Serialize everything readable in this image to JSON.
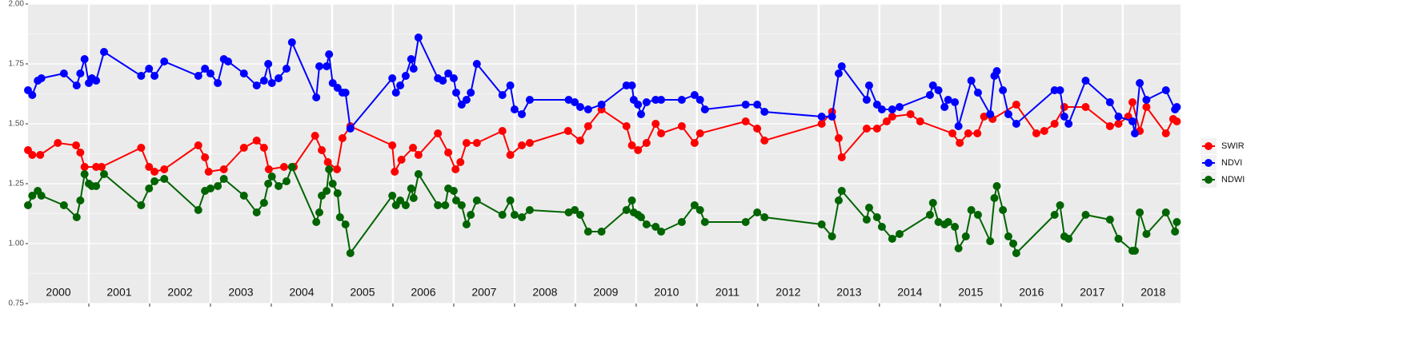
{
  "chart_data": {
    "type": "line",
    "xlim": [
      2000,
      2018.95
    ],
    "xticks": [
      2001,
      2002,
      2003,
      2004,
      2005,
      2006,
      2007,
      2008,
      2009,
      2010,
      2011,
      2012,
      2013,
      2014,
      2015,
      2016,
      2017,
      2018
    ],
    "ylim": [
      0.75,
      2.0
    ],
    "yticks": [
      {
        "value": 0.75,
        "label": "0.75"
      },
      {
        "value": 1.0,
        "label": "1.00"
      },
      {
        "value": 1.25,
        "label": "1.25"
      },
      {
        "value": 1.5,
        "label": "1.50"
      },
      {
        "value": 1.75,
        "label": "1.75"
      },
      {
        "value": 2.0,
        "label": "2.00"
      }
    ],
    "grid": true,
    "legend": "right",
    "year_labels": [
      {
        "x": 2000.5,
        "text": "2000"
      },
      {
        "x": 2001.5,
        "text": "2001"
      },
      {
        "x": 2002.5,
        "text": "2002"
      },
      {
        "x": 2003.5,
        "text": "2003"
      },
      {
        "x": 2004.5,
        "text": "2004"
      },
      {
        "x": 2005.5,
        "text": "2005"
      },
      {
        "x": 2006.5,
        "text": "2006"
      },
      {
        "x": 2007.5,
        "text": "2007"
      },
      {
        "x": 2008.5,
        "text": "2008"
      },
      {
        "x": 2009.5,
        "text": "2009"
      },
      {
        "x": 2010.5,
        "text": "2010"
      },
      {
        "x": 2011.5,
        "text": "2011"
      },
      {
        "x": 2012.5,
        "text": "2012"
      },
      {
        "x": 2013.5,
        "text": "2013"
      },
      {
        "x": 2014.5,
        "text": "2014"
      },
      {
        "x": 2015.5,
        "text": "2015"
      },
      {
        "x": 2016.5,
        "text": "2016"
      },
      {
        "x": 2017.5,
        "text": "2017"
      },
      {
        "x": 2018.5,
        "text": "2018"
      }
    ],
    "series": [
      {
        "name": "SWIR",
        "color": "#ff0000",
        "x": [
          2000.0,
          2000.07,
          2000.2,
          2000.49,
          2000.79,
          2000.86,
          2000.93,
          2001.12,
          2001.21,
          2001.86,
          2001.99,
          2002.08,
          2002.24,
          2002.8,
          2002.91,
          2002.97,
          2003.22,
          2003.55,
          2003.76,
          2003.88,
          2003.96,
          2004.21,
          2004.37,
          2004.72,
          2004.83,
          2004.93,
          2005.08,
          2005.17,
          2005.3,
          2005.99,
          2006.03,
          2006.14,
          2006.33,
          2006.42,
          2006.74,
          2006.91,
          2007.03,
          2007.11,
          2007.21,
          2007.38,
          2007.8,
          2007.93,
          2008.12,
          2008.25,
          2008.88,
          2009.08,
          2009.21,
          2009.43,
          2009.84,
          2009.93,
          2010.03,
          2010.17,
          2010.32,
          2010.41,
          2010.75,
          2010.96,
          2011.05,
          2011.8,
          2011.99,
          2012.11,
          2013.05,
          2013.22,
          2013.33,
          2013.38,
          2013.79,
          2013.96,
          2014.12,
          2014.21,
          2014.51,
          2014.67,
          2015.2,
          2015.32,
          2015.46,
          2015.61,
          2015.72,
          2015.86,
          2016.25,
          2016.58,
          2016.71,
          2016.88,
          2017.04,
          2017.39,
          2017.79,
          2017.93,
          2018.09,
          2018.16,
          2018.28,
          2018.39,
          2018.71,
          2018.83,
          2018.89
        ],
        "values": [
          1.39,
          1.37,
          1.37,
          1.42,
          1.41,
          1.38,
          1.32,
          1.32,
          1.32,
          1.4,
          1.32,
          1.3,
          1.31,
          1.41,
          1.36,
          1.3,
          1.31,
          1.4,
          1.43,
          1.4,
          1.31,
          1.32,
          1.32,
          1.45,
          1.39,
          1.34,
          1.31,
          1.44,
          1.49,
          1.41,
          1.3,
          1.35,
          1.4,
          1.37,
          1.46,
          1.38,
          1.31,
          1.34,
          1.42,
          1.42,
          1.47,
          1.37,
          1.41,
          1.42,
          1.47,
          1.43,
          1.49,
          1.56,
          1.49,
          1.41,
          1.39,
          1.42,
          1.5,
          1.46,
          1.49,
          1.42,
          1.46,
          1.51,
          1.48,
          1.43,
          1.5,
          1.55,
          1.44,
          1.36,
          1.48,
          1.48,
          1.51,
          1.53,
          1.54,
          1.51,
          1.46,
          1.42,
          1.46,
          1.46,
          1.53,
          1.52,
          1.58,
          1.46,
          1.47,
          1.5,
          1.57,
          1.57,
          1.49,
          1.5,
          1.53,
          1.59,
          1.47,
          1.57,
          1.46,
          1.52,
          1.51
        ]
      },
      {
        "name": "NDVI",
        "color": "#0000ff",
        "x": [
          2000.0,
          2000.07,
          2000.16,
          2000.22,
          2000.59,
          2000.8,
          2000.86,
          2000.93,
          2001.0,
          2001.05,
          2001.12,
          2001.25,
          2001.86,
          2001.99,
          2002.08,
          2002.24,
          2002.8,
          2002.91,
          2003.0,
          2003.12,
          2003.22,
          2003.29,
          2003.55,
          2003.76,
          2003.88,
          2003.95,
          2004.01,
          2004.12,
          2004.25,
          2004.34,
          2004.74,
          2004.79,
          2004.91,
          2004.95,
          2005.01,
          2005.09,
          2005.17,
          2005.22,
          2005.3,
          2005.99,
          2006.05,
          2006.12,
          2006.21,
          2006.3,
          2006.34,
          2006.42,
          2006.74,
          2006.82,
          2006.91,
          2007.0,
          2007.04,
          2007.13,
          2007.21,
          2007.28,
          2007.38,
          2007.8,
          2007.93,
          2008.0,
          2008.12,
          2008.25,
          2008.89,
          2008.99,
          2009.08,
          2009.21,
          2009.43,
          2009.84,
          2009.93,
          2009.96,
          2010.03,
          2010.08,
          2010.17,
          2010.32,
          2010.41,
          2010.75,
          2010.96,
          2011.05,
          2011.13,
          2011.8,
          2011.99,
          2012.11,
          2013.05,
          2013.22,
          2013.33,
          2013.38,
          2013.79,
          2013.83,
          2013.96,
          2014.04,
          2014.21,
          2014.33,
          2014.83,
          2014.88,
          2014.97,
          2015.07,
          2015.13,
          2015.24,
          2015.3,
          2015.51,
          2015.62,
          2015.82,
          2015.89,
          2015.93,
          2016.03,
          2016.12,
          2016.25,
          2016.88,
          2016.97,
          2017.04,
          2017.11,
          2017.39,
          2017.79,
          2017.93,
          2018.16,
          2018.2,
          2018.28,
          2018.39,
          2018.71,
          2018.86,
          2018.89
        ],
        "values": [
          1.64,
          1.62,
          1.68,
          1.69,
          1.71,
          1.66,
          1.71,
          1.77,
          1.67,
          1.69,
          1.68,
          1.8,
          1.7,
          1.73,
          1.7,
          1.76,
          1.7,
          1.73,
          1.71,
          1.67,
          1.77,
          1.76,
          1.71,
          1.66,
          1.68,
          1.75,
          1.67,
          1.69,
          1.73,
          1.84,
          1.61,
          1.74,
          1.74,
          1.79,
          1.67,
          1.65,
          1.63,
          1.63,
          1.48,
          1.69,
          1.63,
          1.66,
          1.7,
          1.77,
          1.73,
          1.86,
          1.69,
          1.68,
          1.71,
          1.69,
          1.63,
          1.58,
          1.6,
          1.63,
          1.75,
          1.62,
          1.66,
          1.56,
          1.54,
          1.6,
          1.6,
          1.59,
          1.57,
          1.56,
          1.58,
          1.66,
          1.66,
          1.6,
          1.58,
          1.54,
          1.59,
          1.6,
          1.6,
          1.6,
          1.62,
          1.6,
          1.56,
          1.58,
          1.58,
          1.55,
          1.53,
          1.53,
          1.71,
          1.74,
          1.6,
          1.66,
          1.58,
          1.56,
          1.56,
          1.57,
          1.62,
          1.66,
          1.64,
          1.57,
          1.6,
          1.59,
          1.49,
          1.68,
          1.63,
          1.54,
          1.7,
          1.72,
          1.64,
          1.54,
          1.5,
          1.64,
          1.64,
          1.53,
          1.5,
          1.68,
          1.59,
          1.53,
          1.51,
          1.46,
          1.67,
          1.6,
          1.64,
          1.56,
          1.57
        ]
      },
      {
        "name": "NDWI",
        "color": "#006400",
        "x": [
          2000.0,
          2000.07,
          2000.16,
          2000.22,
          2000.59,
          2000.8,
          2000.86,
          2000.93,
          2001.0,
          2001.05,
          2001.12,
          2001.25,
          2001.86,
          2001.99,
          2002.08,
          2002.24,
          2002.8,
          2002.91,
          2003.0,
          2003.12,
          2003.22,
          2003.55,
          2003.76,
          2003.88,
          2003.95,
          2004.01,
          2004.12,
          2004.25,
          2004.34,
          2004.74,
          2004.79,
          2004.83,
          2004.91,
          2004.95,
          2005.01,
          2005.09,
          2005.13,
          2005.22,
          2005.3,
          2005.99,
          2006.05,
          2006.12,
          2006.21,
          2006.3,
          2006.34,
          2006.42,
          2006.74,
          2006.86,
          2006.91,
          2007.0,
          2007.04,
          2007.13,
          2007.21,
          2007.28,
          2007.38,
          2007.8,
          2007.93,
          2008.0,
          2008.12,
          2008.25,
          2008.89,
          2008.99,
          2009.08,
          2009.21,
          2009.43,
          2009.84,
          2009.93,
          2009.96,
          2010.03,
          2010.08,
          2010.17,
          2010.32,
          2010.41,
          2010.75,
          2010.96,
          2011.05,
          2011.13,
          2011.8,
          2011.99,
          2012.11,
          2013.05,
          2013.22,
          2013.33,
          2013.38,
          2013.79,
          2013.83,
          2013.96,
          2014.04,
          2014.21,
          2014.33,
          2014.83,
          2014.88,
          2014.97,
          2015.07,
          2015.13,
          2015.24,
          2015.3,
          2015.42,
          2015.51,
          2015.62,
          2015.82,
          2015.89,
          2015.93,
          2016.03,
          2016.12,
          2016.2,
          2016.25,
          2016.88,
          2016.97,
          2017.04,
          2017.11,
          2017.39,
          2017.79,
          2017.93,
          2018.16,
          2018.2,
          2018.28,
          2018.39,
          2018.71,
          2018.86,
          2018.89
        ],
        "values": [
          1.16,
          1.2,
          1.22,
          1.2,
          1.16,
          1.11,
          1.18,
          1.29,
          1.25,
          1.24,
          1.24,
          1.29,
          1.16,
          1.23,
          1.26,
          1.27,
          1.14,
          1.22,
          1.23,
          1.24,
          1.27,
          1.2,
          1.13,
          1.17,
          1.25,
          1.28,
          1.24,
          1.26,
          1.32,
          1.09,
          1.13,
          1.2,
          1.22,
          1.31,
          1.25,
          1.21,
          1.11,
          1.08,
          0.96,
          1.2,
          1.16,
          1.18,
          1.16,
          1.23,
          1.19,
          1.29,
          1.16,
          1.16,
          1.23,
          1.22,
          1.18,
          1.16,
          1.08,
          1.12,
          1.18,
          1.12,
          1.18,
          1.12,
          1.11,
          1.14,
          1.13,
          1.14,
          1.12,
          1.05,
          1.05,
          1.14,
          1.18,
          1.13,
          1.12,
          1.11,
          1.08,
          1.07,
          1.05,
          1.09,
          1.16,
          1.14,
          1.09,
          1.09,
          1.13,
          1.11,
          1.08,
          1.03,
          1.18,
          1.22,
          1.1,
          1.15,
          1.11,
          1.07,
          1.02,
          1.04,
          1.12,
          1.17,
          1.09,
          1.08,
          1.09,
          1.07,
          0.98,
          1.03,
          1.14,
          1.12,
          1.01,
          1.19,
          1.24,
          1.14,
          1.03,
          1.0,
          0.96,
          1.12,
          1.16,
          1.03,
          1.02,
          1.12,
          1.1,
          1.02,
          0.97,
          0.97,
          1.13,
          1.04,
          1.13,
          1.05,
          1.09
        ]
      }
    ]
  }
}
